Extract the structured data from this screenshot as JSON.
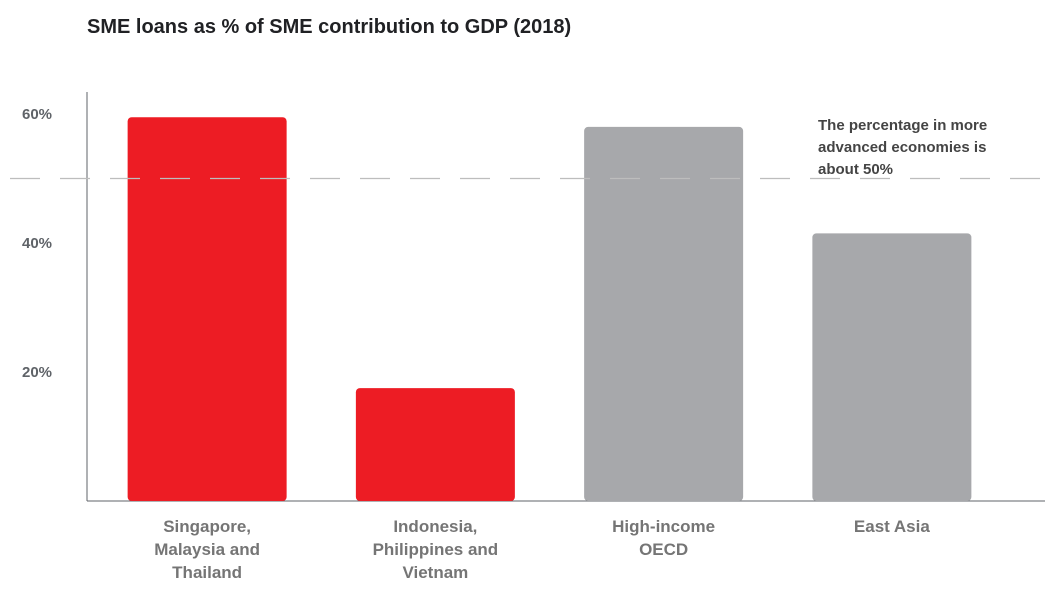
{
  "chart_data": {
    "type": "bar",
    "title": "SME loans as % of SME contribution to GDP (2018)",
    "categories": [
      [
        "Singapore,",
        "Malaysia and",
        "Thailand"
      ],
      [
        "Indonesia,",
        "Philippines and",
        "Vietnam"
      ],
      [
        "High-income",
        "OECD"
      ],
      [
        "East Asia"
      ]
    ],
    "values": [
      59.5,
      17.5,
      58,
      41.5
    ],
    "bar_colors": [
      "#ed1c24",
      "#ed1c24",
      "#a7a8ab",
      "#a7a8ab"
    ],
    "ylim": [
      0,
      65
    ],
    "yticks": [
      20,
      40,
      60
    ],
    "ytick_labels": [
      "20%",
      "40%",
      "60%"
    ],
    "reference_line": {
      "value": 50
    },
    "annotation": [
      "The percentage in more",
      "advanced economies is",
      "about 50%"
    ],
    "grid": false
  }
}
